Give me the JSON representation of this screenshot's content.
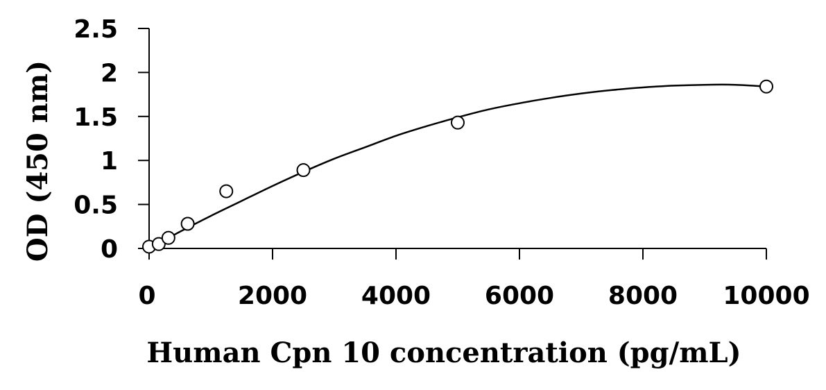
{
  "chart_data": {
    "type": "scatter",
    "title": "",
    "xlabel": "Human Cpn 10 concentration (pg/mL)",
    "ylabel": "OD (450 nm)",
    "xlim": [
      0,
      10000
    ],
    "ylim": [
      0,
      2.5
    ],
    "x_ticks": [
      0,
      2000,
      4000,
      6000,
      8000,
      10000
    ],
    "x_tick_labels": [
      "0",
      "2000",
      "4000",
      "6000",
      "8000",
      "10000"
    ],
    "y_ticks": [
      0,
      0.5,
      1,
      1.5,
      2,
      2.5
    ],
    "y_tick_labels": [
      "0",
      "0.5",
      "1",
      "1.5",
      "2",
      "2.5"
    ],
    "grid": false,
    "legend": "none",
    "series": [
      {
        "type": "scatter",
        "marker": "open-circle",
        "x": [
          0,
          156,
          313,
          625,
          1250,
          2500,
          5000,
          10000
        ],
        "y": [
          0.02,
          0.05,
          0.12,
          0.28,
          0.65,
          0.89,
          1.43,
          1.84
        ]
      },
      {
        "type": "line",
        "style": "smooth fitted curve",
        "x": [
          0,
          500,
          1000,
          1500,
          2000,
          2500,
          3000,
          3500,
          4000,
          4500,
          5000,
          5500,
          6000,
          6500,
          7000,
          7500,
          8000,
          8500,
          9000,
          9500,
          10000
        ],
        "y": [
          0.0,
          0.19,
          0.37,
          0.54,
          0.71,
          0.87,
          1.02,
          1.15,
          1.28,
          1.39,
          1.49,
          1.58,
          1.65,
          1.71,
          1.76,
          1.8,
          1.83,
          1.85,
          1.86,
          1.86,
          1.84
        ]
      }
    ]
  }
}
